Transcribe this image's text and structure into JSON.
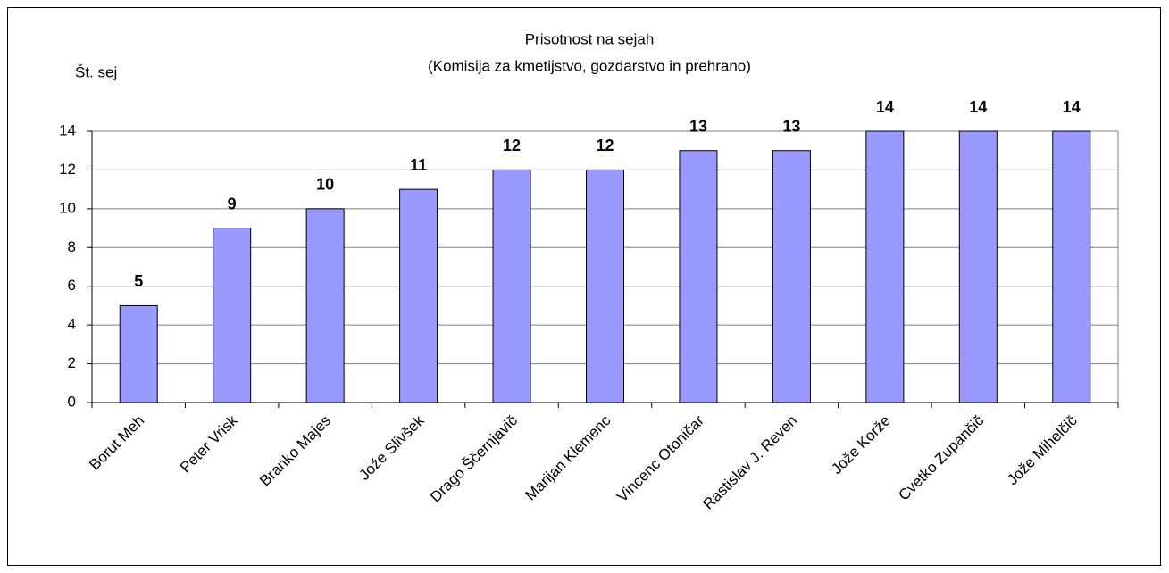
{
  "chart_data": {
    "type": "bar",
    "title": "Prisotnost na sejah",
    "subtitle": "(Komisija za kmetijstvo, gozdarstvo in prehrano)",
    "y_label": "Št. sej",
    "categories": [
      "Borut Meh",
      "Peter Vrisk",
      "Branko Majes",
      "Jože Slivšek",
      "Drago Ščernjavič",
      "Marijan Klemenc",
      "Vincenc Otoničar",
      "Rastislav J. Reven",
      "Jože Korže",
      "Cvetko Zupančič",
      "Jože Mihelčič"
    ],
    "values": [
      5,
      9,
      10,
      11,
      12,
      12,
      13,
      13,
      14,
      14,
      14
    ],
    "color": "#9999ff",
    "ylim": [
      0,
      14
    ],
    "yticks": [
      0,
      2,
      4,
      6,
      8,
      10,
      12,
      14
    ],
    "grid": true
  }
}
